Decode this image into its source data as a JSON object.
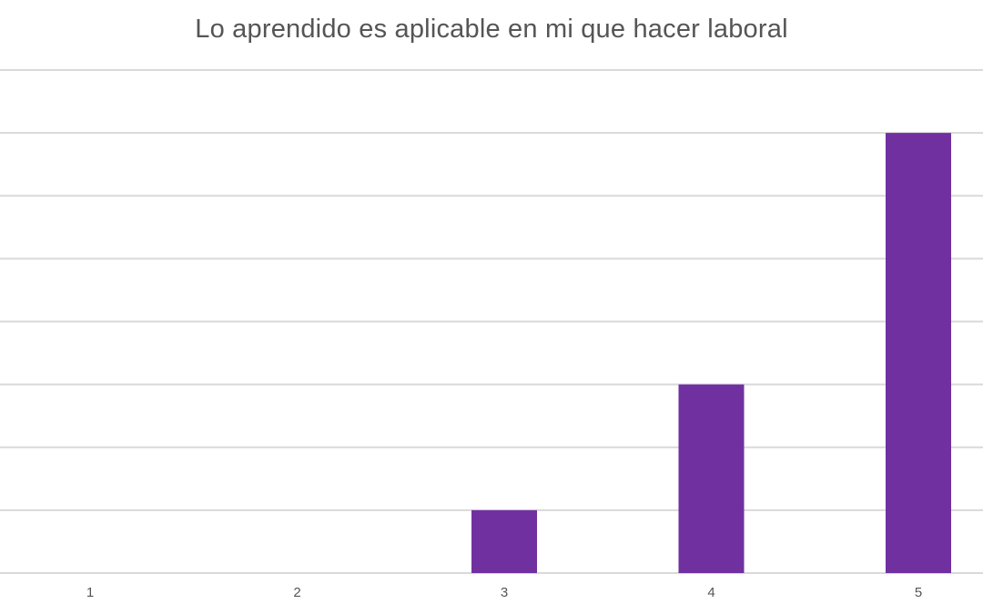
{
  "chart_data": {
    "type": "bar",
    "title": "Lo aprendido es aplicable en mi que hacer laboral",
    "xlabel": "",
    "ylabel": "",
    "categories": [
      "1",
      "2",
      "3",
      "4",
      "5"
    ],
    "values": [
      0,
      0,
      1,
      3,
      7
    ],
    "ylim": [
      0,
      8
    ],
    "grid": true,
    "bar_color": "#7030a0"
  }
}
